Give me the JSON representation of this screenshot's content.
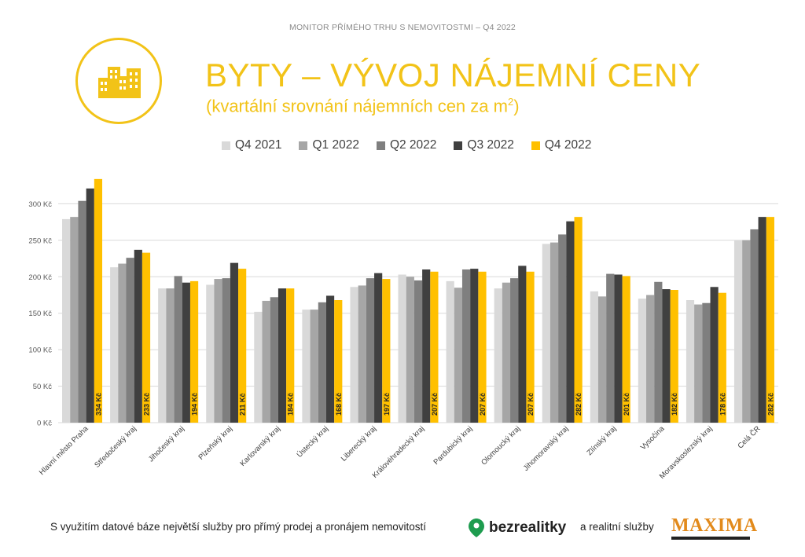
{
  "header": {
    "caption": "MONITOR PŘÍMÉHO TRHU S NEMOVITOSTMI – Q4 2022",
    "title": "BYTY – VÝVOJ NÁJEMNÍ CENY",
    "subtitle": "(kvartální srovnání nájemních cen za m",
    "subtitle_sup": "2",
    "subtitle_end": ")"
  },
  "colors": {
    "accent": "#F2C318",
    "Q4 2021": "#D9D9D9",
    "Q1 2022": "#A6A6A6",
    "Q2 2022": "#7F7F7F",
    "Q3 2022": "#404040",
    "Q4 2022": "#FFC000"
  },
  "chart_data": {
    "type": "bar",
    "categories": [
      "Hlavní město Praha",
      "Středočeský kraj",
      "Jihočeský kraj",
      "Plzeňský kraj",
      "Karlovarský kraj",
      "Ústecký kraj",
      "Liberecký kraj",
      "Královéhradecký kraj",
      "Pardubický kraj",
      "Olomoucký kraj",
      "Jihomoravský kraj",
      "Zlínský kraj",
      "Vysočina",
      "Moravskoslezský kraj",
      "Celá ČR"
    ],
    "series": [
      {
        "name": "Q4 2021",
        "values": [
          279,
          213,
          184,
          189,
          152,
          155,
          186,
          203,
          194,
          184,
          245,
          180,
          170,
          168,
          250
        ]
      },
      {
        "name": "Q1 2022",
        "values": [
          282,
          218,
          184,
          197,
          167,
          155,
          188,
          200,
          185,
          192,
          247,
          173,
          175,
          162,
          250
        ]
      },
      {
        "name": "Q2 2022",
        "values": [
          304,
          226,
          201,
          198,
          172,
          165,
          198,
          195,
          210,
          198,
          258,
          204,
          193,
          164,
          265
        ]
      },
      {
        "name": "Q3 2022",
        "values": [
          321,
          237,
          192,
          219,
          184,
          174,
          205,
          210,
          211,
          215,
          276,
          203,
          183,
          186,
          282
        ]
      },
      {
        "name": "Q4 2022",
        "values": [
          334,
          233,
          194,
          211,
          184,
          168,
          197,
          207,
          207,
          207,
          282,
          201,
          182,
          178,
          282
        ]
      }
    ],
    "data_labels": [
      "334 Kč",
      "233 Kč",
      "194 Kč",
      "211 Kč",
      "184 Kč",
      "168 Kč",
      "197 Kč",
      "207 Kč",
      "207 Kč",
      "207 Kč",
      "282 Kč",
      "201 Kč",
      "182 Kč",
      "178 Kč",
      "282 Kč"
    ],
    "y_ticks": [
      "0 Kč",
      "50 Kč",
      "100 Kč",
      "150 Kč",
      "200 Kč",
      "250 Kč",
      "300 Kč"
    ],
    "ylim": [
      0,
      350
    ],
    "grid": true,
    "legend_position": "top"
  },
  "footer": {
    "text1": "S využitím datové báze největší služby pro přímý prodej a pronájem nemovitostí",
    "brand1": "bezrealitky",
    "text2": "a realitní služby",
    "brand2": "MAXIMA"
  }
}
